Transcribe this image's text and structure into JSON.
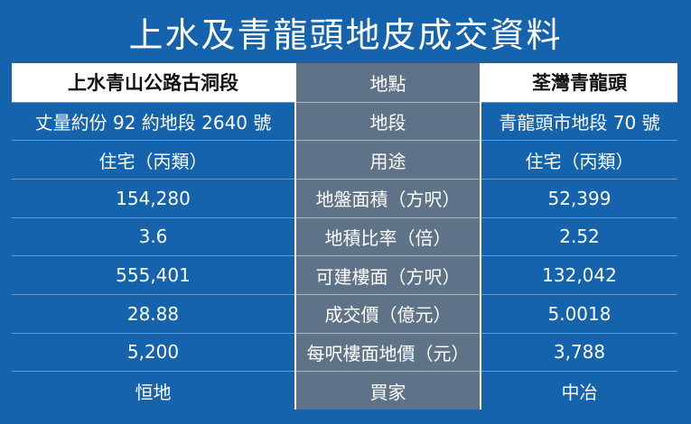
{
  "title": "上水及青龍頭地皮成交資料",
  "colors": {
    "background": "#1562ad",
    "middle_column": "#5e7388",
    "header_cell": "#ffffff"
  },
  "rows": [
    {
      "left": "上水青山公路古洞段",
      "label": "地點",
      "right": "荃灣青龍頭"
    },
    {
      "left": "丈量約份 92 約地段 2640 號",
      "label": "地段",
      "right": "青龍頭市地段 70 號"
    },
    {
      "left": "住宅（丙類）",
      "label": "用途",
      "right": "住宅（丙類）"
    },
    {
      "left": "154,280",
      "label": "地盤面積（方呎）",
      "right": "52,399"
    },
    {
      "left": "3.6",
      "label": "地積比率（倍）",
      "right": "2.52"
    },
    {
      "left": "555,401",
      "label": "可建樓面（方呎）",
      "right": "132,042"
    },
    {
      "left": "28.88",
      "label": "成交價（億元）",
      "right": "5.0018"
    },
    {
      "left": "5,200",
      "label": "每呎樓面地價（元）",
      "right": "3,788"
    },
    {
      "left": "恒地",
      "label": "買家",
      "right": "中冶"
    }
  ]
}
